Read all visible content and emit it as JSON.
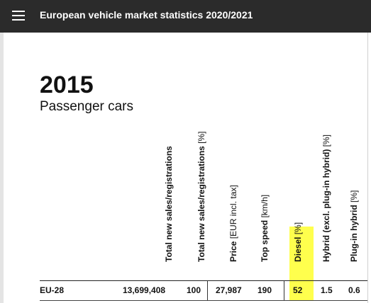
{
  "app": {
    "title": "European vehicle market statistics 2020/2021"
  },
  "page": {
    "year": "2015",
    "subtitle": "Passenger cars"
  },
  "table": {
    "columns": [
      {
        "bold": "Total new sales/registrations",
        "unit": ""
      },
      {
        "bold": "Total new sales/registrations",
        "unit": " [%]"
      },
      {
        "bold": "Price",
        "unit": " [EUR incl. tax]"
      },
      {
        "bold": "Top speed",
        "unit": " [km/h]"
      },
      {
        "bold": "Diesel",
        "unit": " [%]"
      },
      {
        "bold": "Hybrid (excl. plug-in hybrid)",
        "unit": " [%]"
      },
      {
        "bold": "Plug-in hybrid",
        "unit": " [%]"
      }
    ],
    "rows": [
      {
        "label": "EU-28",
        "cells": [
          "13,699,408",
          "100",
          "27,987",
          "190",
          "52",
          "1.5",
          "0.6"
        ]
      }
    ]
  },
  "colors": {
    "topbar": "#2b2b2b",
    "highlight": "#ffff4d"
  }
}
